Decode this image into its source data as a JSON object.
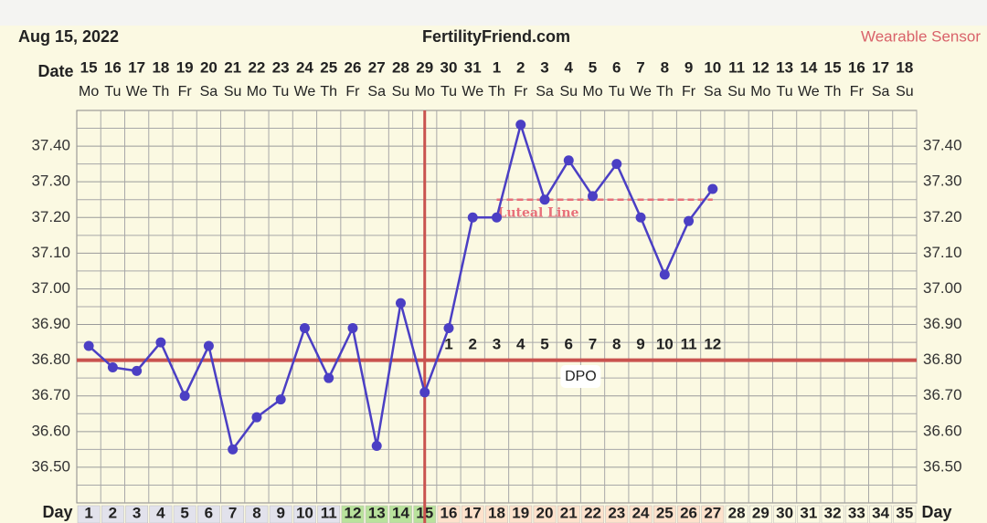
{
  "chart_data": {
    "type": "line",
    "date_header": "Aug 15, 2022",
    "title": "FertilityFriend.com",
    "source_label": "Wearable Sensor",
    "date_row_label": "Date",
    "day_row_label": "Day",
    "dates": [
      15,
      16,
      17,
      18,
      19,
      20,
      21,
      22,
      23,
      24,
      25,
      26,
      27,
      28,
      29,
      30,
      31,
      1,
      2,
      3,
      4,
      5,
      6,
      7,
      8,
      9,
      10,
      11,
      12,
      13,
      14,
      15,
      16,
      17,
      18
    ],
    "weekdays": [
      "Mo",
      "Tu",
      "We",
      "Th",
      "Fr",
      "Sa",
      "Su",
      "Mo",
      "Tu",
      "We",
      "Th",
      "Fr",
      "Sa",
      "Su",
      "Mo",
      "Tu",
      "We",
      "Th",
      "Fr",
      "Sa",
      "Su",
      "Mo",
      "Tu",
      "We",
      "Th",
      "Fr",
      "Sa",
      "Su",
      "Mo",
      "Tu",
      "We",
      "Th",
      "Fr",
      "Sa",
      "Su"
    ],
    "days": [
      1,
      2,
      3,
      4,
      5,
      6,
      7,
      8,
      9,
      10,
      11,
      12,
      13,
      14,
      15,
      16,
      17,
      18,
      19,
      20,
      21,
      22,
      23,
      24,
      25,
      26,
      27,
      28,
      29,
      30,
      31,
      32,
      33,
      34,
      35
    ],
    "day_colors": [
      "#e2e2ec",
      "#e2e2ec",
      "#e2e2ec",
      "#e2e2ec",
      "#e2e2ec",
      "#e2e2ec",
      "#e2e2ec",
      "#e2e2ec",
      "#e2e2ec",
      "#e2e2ec",
      "#e2e2ec",
      "#b9e29c",
      "#b9e29c",
      "#b9e29c",
      "#b9e29c",
      "#fde2cc",
      "#fde2cc",
      "#fde2cc",
      "#fde2cc",
      "#fde2cc",
      "#fde2cc",
      "#fde2cc",
      "#fde2cc",
      "#fde2cc",
      "#fde2cc",
      "#fde2cc",
      "#fde2cc",
      "#fbf9e2",
      "#fbf9e2",
      "#fbf9e2",
      "#fbf9e2",
      "#fbf9e2",
      "#fbf9e2",
      "#fbf9e2",
      "#fbf9e2"
    ],
    "x": [
      1,
      2,
      3,
      4,
      5,
      6,
      7,
      8,
      9,
      10,
      11,
      12,
      13,
      14,
      15,
      16,
      17,
      18,
      19,
      20,
      21,
      22,
      23,
      24,
      25,
      26,
      27
    ],
    "series": [
      {
        "color": "#4b3fc4",
        "values": [
          36.84,
          36.78,
          36.77,
          36.85,
          36.7,
          36.84,
          36.55,
          36.64,
          36.69,
          36.89,
          36.75,
          36.89,
          36.56,
          36.96,
          36.71,
          36.89,
          37.2,
          37.2,
          37.46,
          37.25,
          37.36,
          37.26,
          37.35,
          37.2,
          37.04,
          37.19,
          37.28
        ]
      }
    ],
    "xlim": [
      0.5,
      35.5
    ],
    "ylim": [
      36.4,
      37.5
    ],
    "yticks": [
      {
        "value": 36.5,
        "label": "36.50"
      },
      {
        "value": 36.6,
        "label": "36.60"
      },
      {
        "value": 36.7,
        "label": "36.70"
      },
      {
        "value": 36.8,
        "label": "36.80"
      },
      {
        "value": 36.9,
        "label": "36.90"
      },
      {
        "value": 37.0,
        "label": "37.00"
      },
      {
        "value": 37.1,
        "label": "37.10"
      },
      {
        "value": 37.2,
        "label": "37.20"
      },
      {
        "value": 37.3,
        "label": "37.30"
      },
      {
        "value": 37.4,
        "label": "37.40"
      }
    ],
    "grid": true,
    "coverline": 36.8,
    "coverline_color": "#c9534f",
    "ovulation_day": 15,
    "luteal_line": {
      "value": 37.25,
      "label": "Luteal Line",
      "from": 18,
      "to": 27,
      "color": "#e8707a"
    },
    "dpo_labels": [
      1,
      2,
      3,
      4,
      5,
      6,
      7,
      8,
      9,
      10,
      11,
      12
    ],
    "dpo_title": "DPO"
  }
}
